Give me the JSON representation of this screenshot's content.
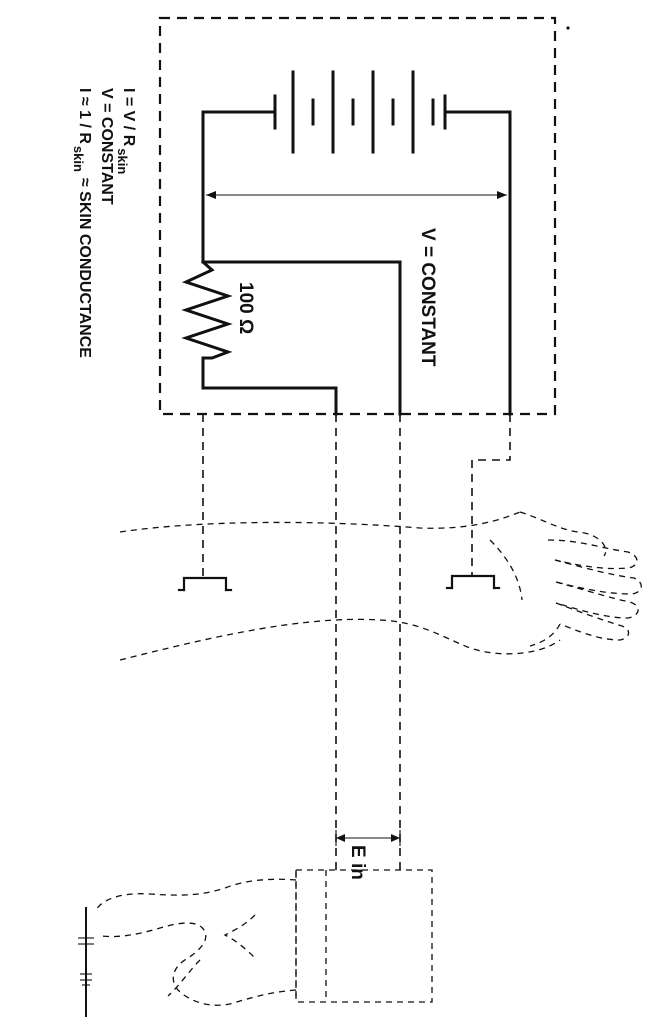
{
  "labels": {
    "voltage_constant": "V = CONSTANT",
    "resistor_value": "100 Ω",
    "input_voltage": "E in"
  },
  "equations": {
    "line1_main": "I = V / R",
    "line1_sub": "skin",
    "line2": "V = CONSTANT",
    "line3_main": "I ≈ 1 / R",
    "line3_sub": "skin",
    "line3_tail": "≈ SKIN  CONDUCTANCE"
  }
}
